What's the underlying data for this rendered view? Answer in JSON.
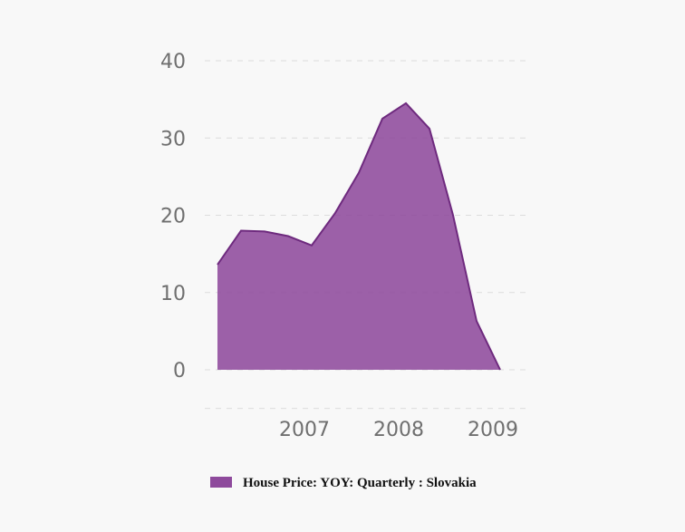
{
  "chart_data": {
    "type": "area",
    "title": "",
    "xlabel": "",
    "ylabel": "",
    "x": [
      "2006-Q1",
      "2006-Q2",
      "2006-Q3",
      "2006-Q4",
      "2007-Q1",
      "2007-Q2",
      "2007-Q3",
      "2007-Q4",
      "2008-Q1",
      "2008-Q2",
      "2008-Q3",
      "2008-Q4",
      "2009-Q1"
    ],
    "series": [
      {
        "name": "House Price: YOY: Quarterly : Slovakia",
        "values": [
          13.6,
          18.0,
          17.9,
          17.3,
          16.1,
          20.3,
          25.5,
          32.5,
          34.5,
          31.2,
          20.0,
          6.3,
          0.0
        ],
        "color": "#8e4a9c"
      }
    ],
    "x_ticks": [
      "2007",
      "2008",
      "2009"
    ],
    "y_ticks": [
      0,
      10,
      20,
      30,
      40
    ],
    "ylim": [
      -5,
      40
    ],
    "grid": true,
    "legend_position": "bottom-center",
    "colors": {
      "area_fill": "#8e4a9c",
      "area_line": "#6e2a7e",
      "grid": "#dcdcdc",
      "tick_text": "#6f6f6f"
    }
  },
  "legend": {
    "label": "House Price: YOY: Quarterly : Slovakia"
  }
}
